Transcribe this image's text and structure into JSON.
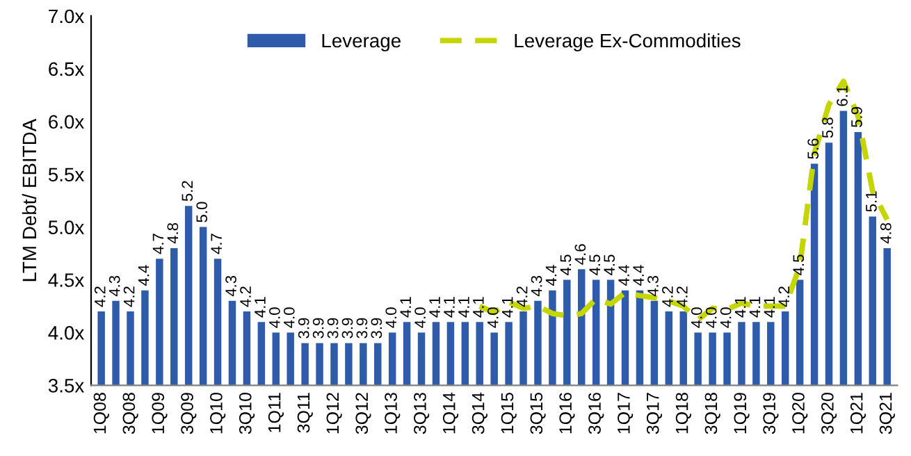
{
  "chart_data": {
    "type": "bar",
    "ylabel": "LTM Debt/ EBITDA",
    "categories": [
      "1Q08",
      null,
      "3Q08",
      null,
      "1Q09",
      null,
      "3Q09",
      null,
      "1Q10",
      null,
      "3Q10",
      null,
      "1Q11",
      null,
      "3Q11",
      null,
      "1Q12",
      null,
      "3Q12",
      null,
      "1Q13",
      null,
      "3Q13",
      null,
      "1Q14",
      null,
      "3Q14",
      null,
      "1Q15",
      null,
      "3Q15",
      null,
      "1Q16",
      null,
      "3Q16",
      null,
      "1Q17",
      null,
      "3Q17",
      null,
      "1Q18",
      null,
      "3Q18",
      null,
      "1Q19",
      null,
      "3Q19",
      null,
      "1Q20",
      null,
      "3Q20",
      null,
      "1Q21",
      null,
      "3Q21"
    ],
    "series": [
      {
        "name": "Leverage",
        "color": "#2e5caa",
        "values": [
          4.2,
          4.3,
          4.2,
          4.4,
          4.7,
          4.8,
          5.2,
          5.0,
          4.7,
          4.3,
          4.2,
          4.1,
          4.0,
          4.0,
          3.9,
          3.9,
          3.9,
          3.9,
          3.9,
          3.9,
          4.0,
          4.1,
          4.0,
          4.1,
          4.1,
          4.1,
          4.1,
          4.0,
          4.1,
          4.2,
          4.3,
          4.4,
          4.5,
          4.6,
          4.5,
          4.5,
          4.4,
          4.4,
          4.3,
          4.2,
          4.2,
          4.0,
          4.0,
          4.0,
          4.1,
          4.1,
          4.1,
          4.2,
          4.5,
          5.6,
          5.8,
          6.1,
          5.9,
          5.1,
          4.8
        ],
        "value_labels": [
          "4.2",
          "4.3",
          "4.2",
          "4.4",
          "4.7",
          "4.8",
          "5.2",
          "5.0",
          "4.7",
          "4.3",
          "4.2",
          "4.1",
          "4.0",
          "4.0",
          "3.9",
          "3.9",
          "3.9",
          "3.9",
          "3.9",
          "3.9",
          "4.0",
          "4.1",
          "4.0",
          "4.1",
          "4.1",
          "4.1",
          "4.1",
          "4.0",
          "4.1",
          "4.2",
          "4.3",
          "4.4",
          "4.5",
          "4.6",
          "4.5",
          "4.5",
          "4.4",
          "4.4",
          "4.3",
          "4.2",
          "4.2",
          "4.0",
          "4.0",
          "4.0",
          "4.1",
          "4.1",
          "4.1",
          "4.2",
          "4.5",
          "5.6",
          "5.8",
          "6.1",
          "5.9",
          "5.1",
          "4.8"
        ]
      },
      {
        "name": "Leverage Ex-Commodities",
        "type": "line",
        "color": "#c5d500",
        "line_style": "dashed",
        "marker": "none",
        "values": [
          null,
          null,
          null,
          null,
          null,
          null,
          null,
          null,
          null,
          null,
          null,
          null,
          null,
          null,
          null,
          null,
          null,
          null,
          null,
          null,
          null,
          null,
          null,
          null,
          null,
          null,
          4.25,
          4.19,
          4.29,
          4.23,
          4.25,
          4.18,
          4.16,
          4.18,
          4.32,
          4.27,
          4.38,
          4.35,
          4.33,
          4.3,
          4.25,
          4.12,
          4.23,
          4.22,
          4.28,
          4.25,
          4.25,
          4.25,
          4.63,
          5.7,
          6.16,
          6.38,
          6.05,
          5.34,
          5.07
        ]
      }
    ],
    "ylim": [
      3.5,
      7.0
    ],
    "yticks": [
      {
        "value": 3.5,
        "label": "3.5x"
      },
      {
        "value": 4.0,
        "label": "4.0x"
      },
      {
        "value": 4.5,
        "label": "4.5x"
      },
      {
        "value": 5.0,
        "label": "5.0x"
      },
      {
        "value": 5.5,
        "label": "5.5x"
      },
      {
        "value": 6.0,
        "label": "6.0x"
      },
      {
        "value": 6.5,
        "label": "6.5x"
      },
      {
        "value": 7.0,
        "label": "7.0x"
      }
    ],
    "grid": false,
    "legend": "top"
  }
}
